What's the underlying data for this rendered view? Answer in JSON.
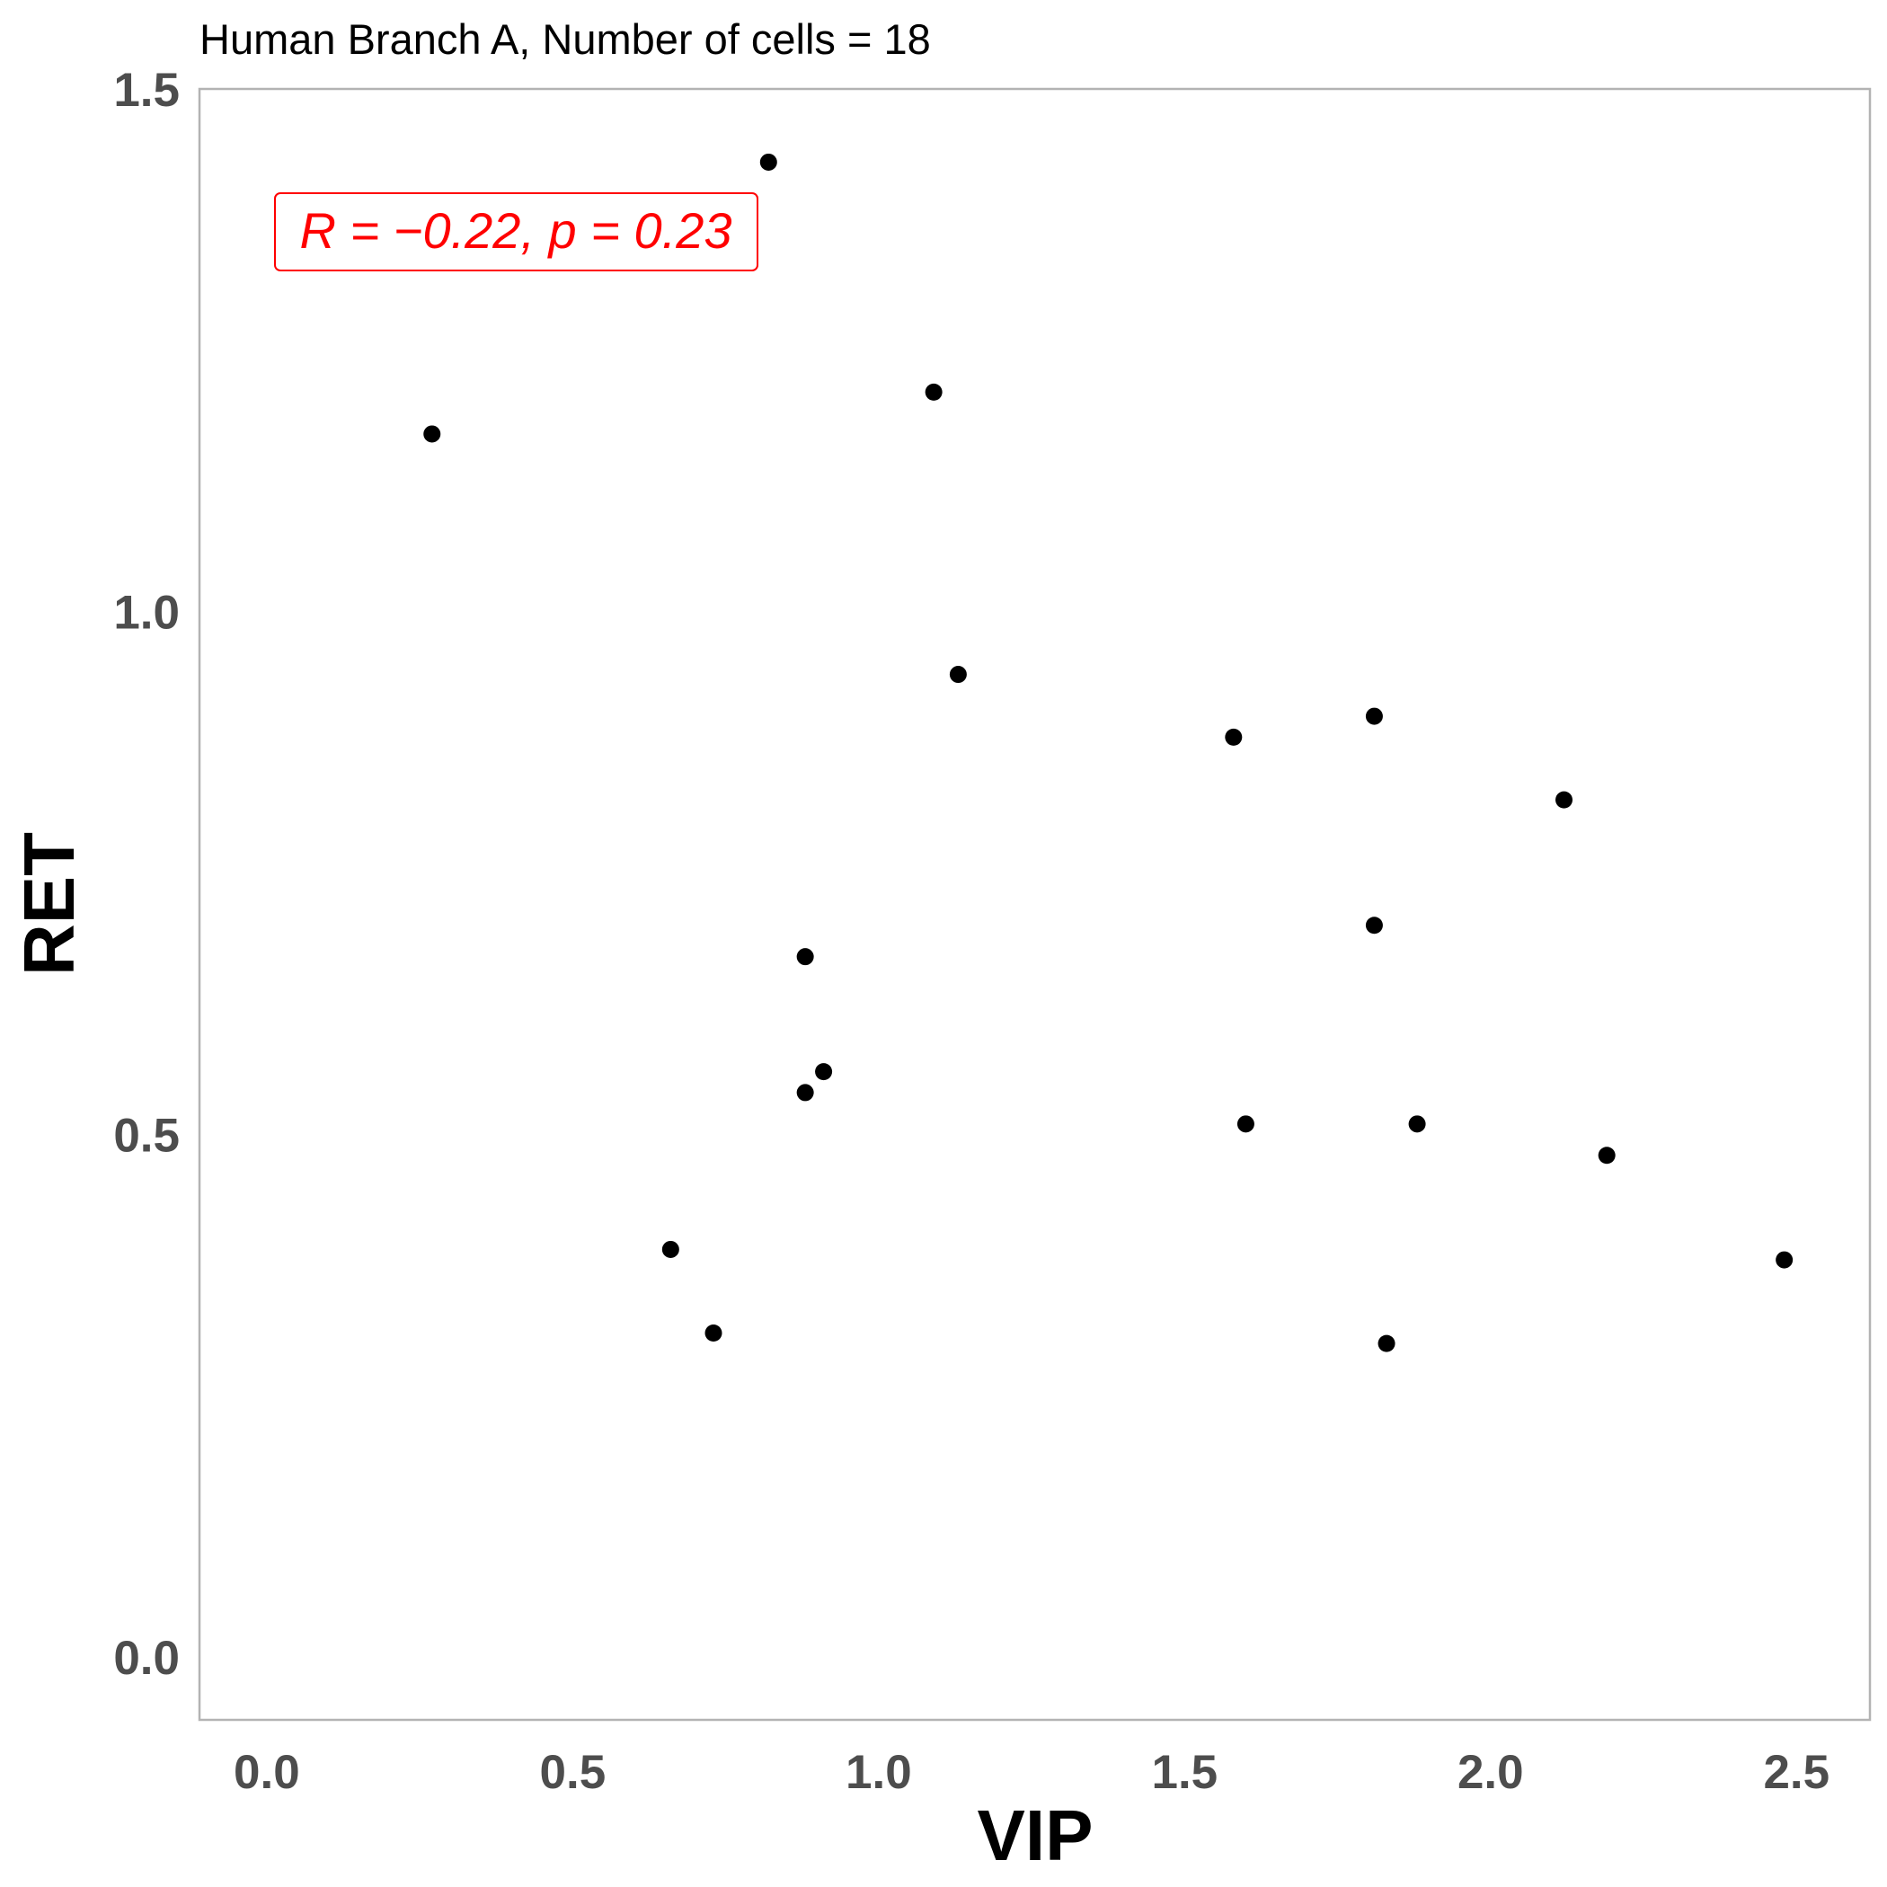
{
  "chart_data": {
    "type": "scatter",
    "title": "Human Branch A, Number of cells = 18",
    "xlabel": "VIP",
    "ylabel": "RET",
    "xlim": [
      -0.11,
      2.62
    ],
    "ylim": [
      -0.06,
      1.5
    ],
    "xticks": [
      0.0,
      0.5,
      1.0,
      1.5,
      2.0,
      2.5
    ],
    "xtick_labels": [
      "0.0",
      "0.5",
      "1.0",
      "1.5",
      "2.0",
      "2.5"
    ],
    "yticks": [
      0.0,
      0.5,
      1.0,
      1.5
    ],
    "ytick_labels": [
      "0.0",
      "0.5",
      "1.0",
      "1.5"
    ],
    "grid": false,
    "point_color": "#000000",
    "annotation": {
      "text": "R = −0.22, p = 0.23",
      "color": "#ff0000",
      "position": "top-left"
    },
    "points": [
      {
        "x": 0.27,
        "y": 1.17
      },
      {
        "x": 0.82,
        "y": 1.43
      },
      {
        "x": 1.09,
        "y": 1.21
      },
      {
        "x": 1.13,
        "y": 0.94
      },
      {
        "x": 0.66,
        "y": 0.39
      },
      {
        "x": 0.73,
        "y": 0.31
      },
      {
        "x": 0.88,
        "y": 0.54
      },
      {
        "x": 0.88,
        "y": 0.67
      },
      {
        "x": 0.91,
        "y": 0.56
      },
      {
        "x": 1.58,
        "y": 0.88
      },
      {
        "x": 1.6,
        "y": 0.51
      },
      {
        "x": 1.81,
        "y": 0.9
      },
      {
        "x": 1.81,
        "y": 0.7
      },
      {
        "x": 1.83,
        "y": 0.3
      },
      {
        "x": 1.88,
        "y": 0.51
      },
      {
        "x": 2.12,
        "y": 0.82
      },
      {
        "x": 2.19,
        "y": 0.48
      },
      {
        "x": 2.48,
        "y": 0.38
      }
    ]
  }
}
